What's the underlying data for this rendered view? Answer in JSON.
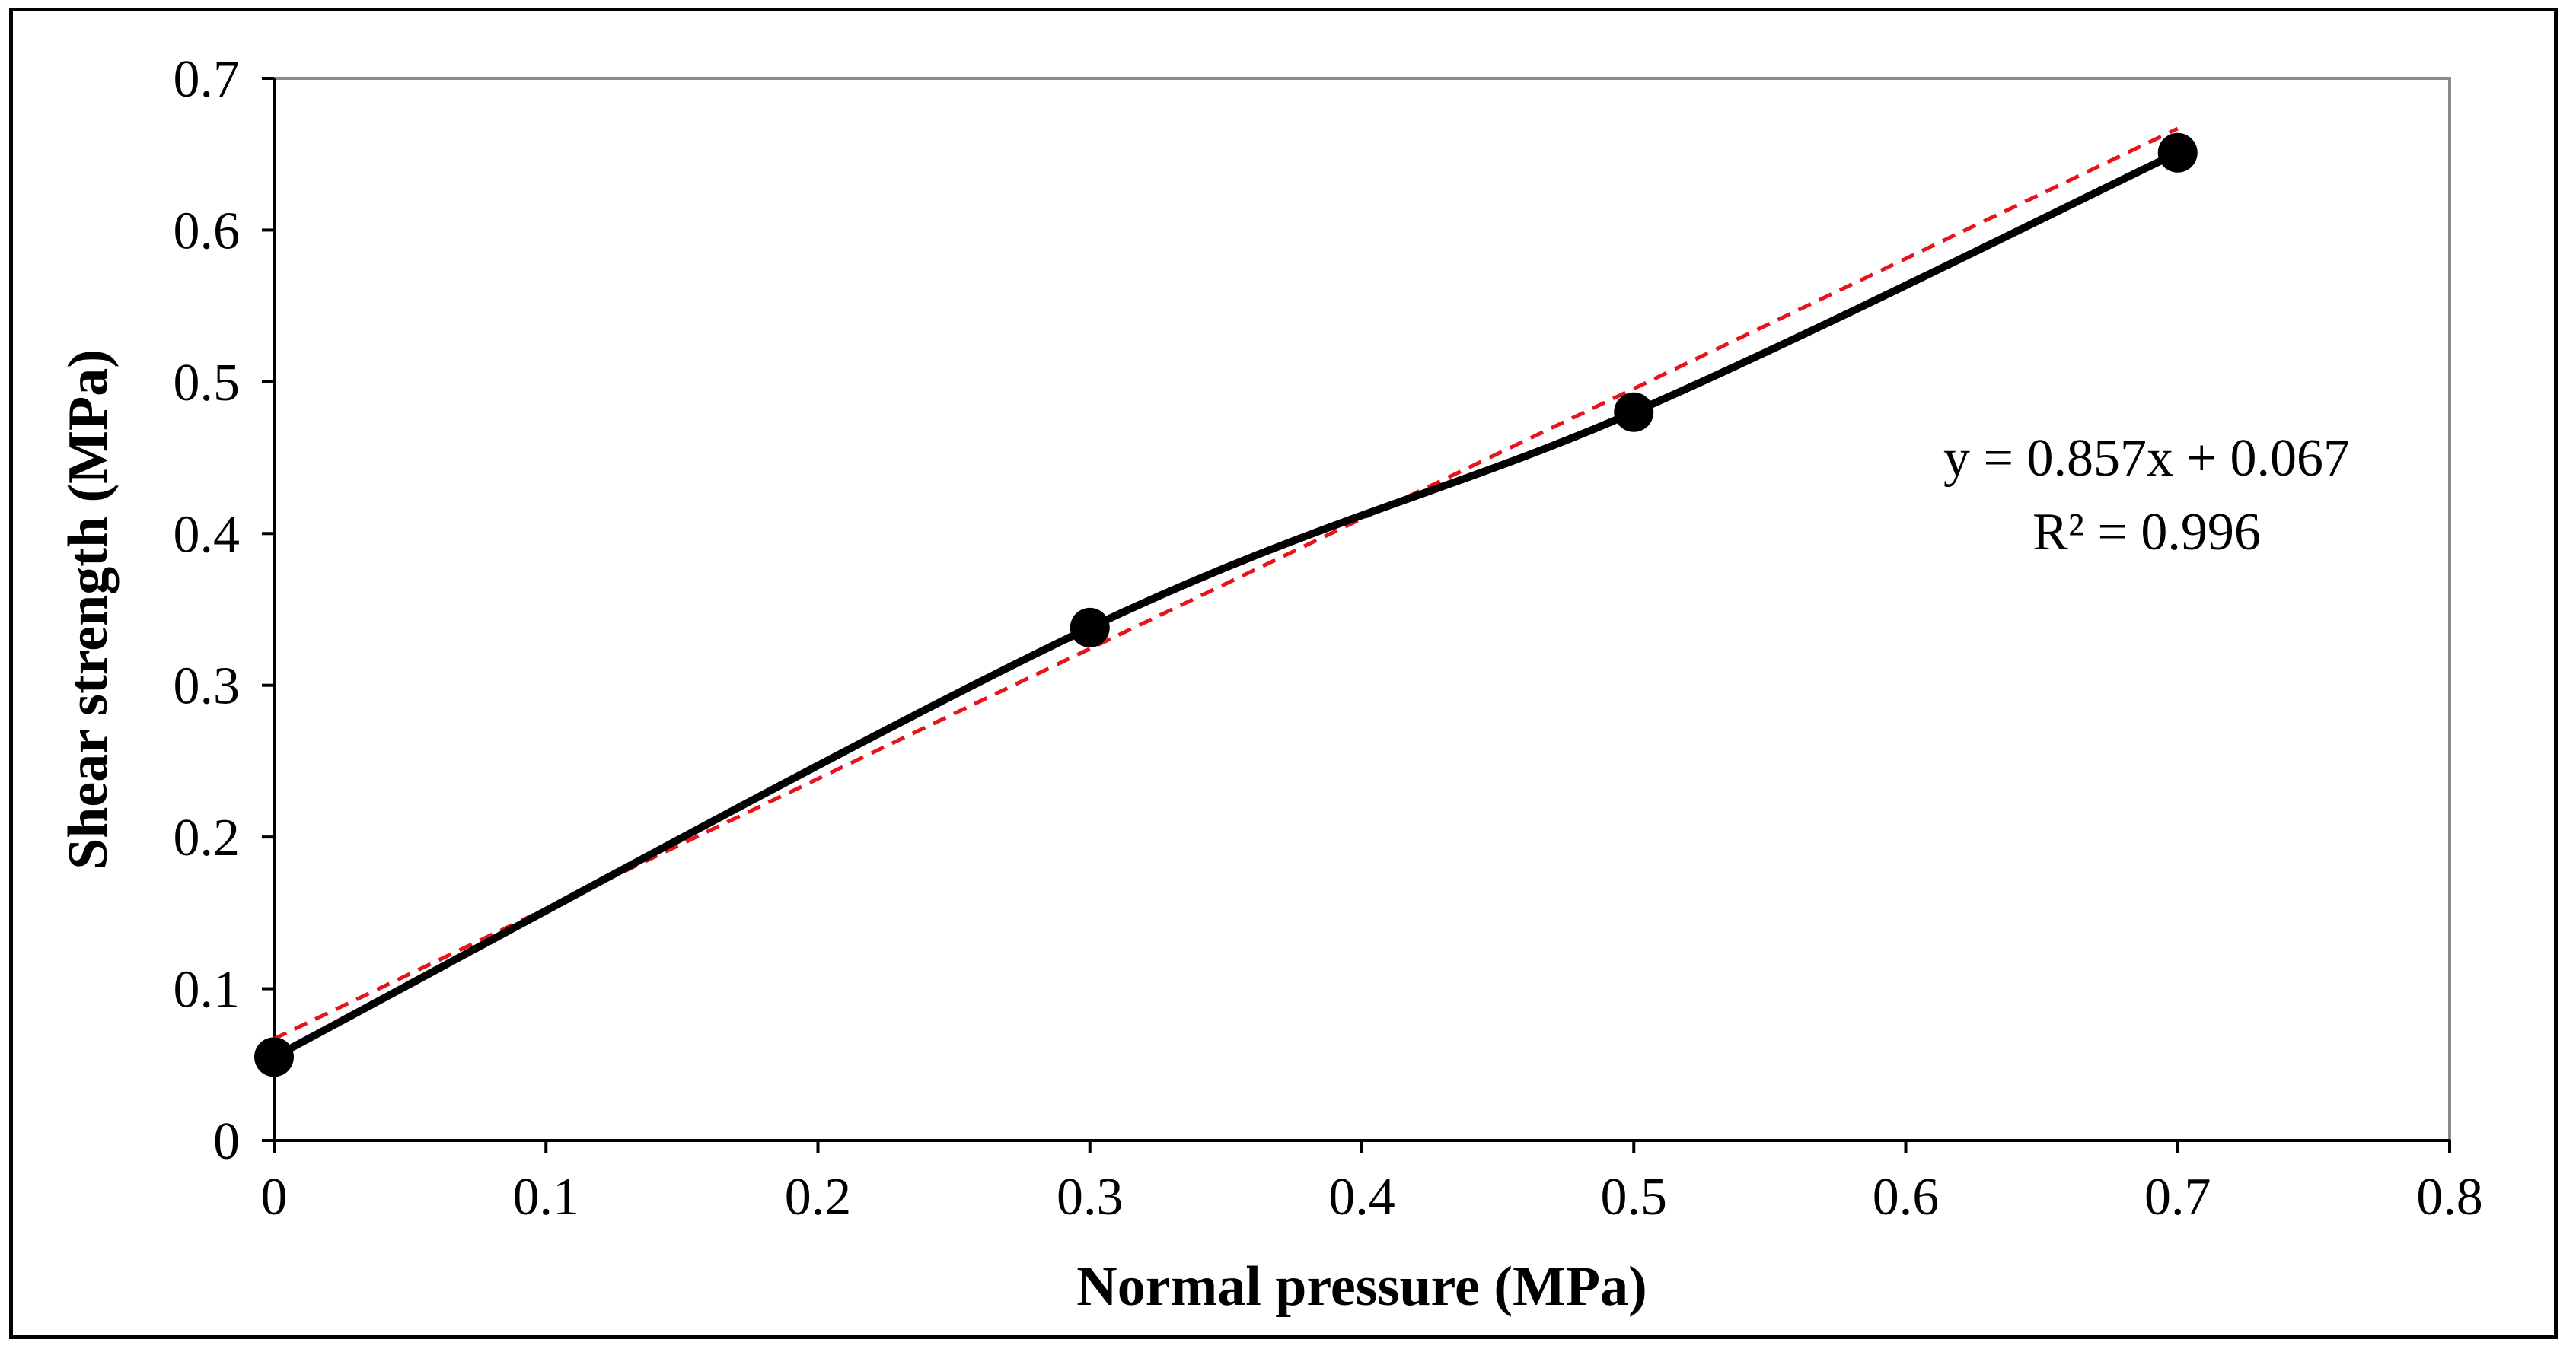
{
  "chart_data": {
    "type": "scatter",
    "title": "",
    "xlabel": "Normal pressure (MPa)",
    "ylabel": "Shear strength (MPa)",
    "xlim": [
      0,
      0.8
    ],
    "ylim": [
      0,
      0.7
    ],
    "x_ticks": [
      "0",
      "0.1",
      "0.2",
      "0.3",
      "0.4",
      "0.5",
      "0.6",
      "0.7",
      "0.8"
    ],
    "y_ticks": [
      "0",
      "0.1",
      "0.2",
      "0.3",
      "0.4",
      "0.5",
      "0.6",
      "0.7"
    ],
    "series": [
      {
        "name": "Shear strength",
        "x": [
          0,
          0.3,
          0.5,
          0.7
        ],
        "y": [
          0.055,
          0.338,
          0.48,
          0.651
        ],
        "line": "smooth",
        "color": "#000000"
      }
    ],
    "trendline": {
      "type": "linear",
      "slope": 0.857,
      "intercept": 0.067,
      "r2": 0.996,
      "x_range": [
        0,
        0.7
      ],
      "color": "#e8141b",
      "style": "dashed"
    },
    "annotations": {
      "equation": "y = 0.857x + 0.067",
      "r_squared": "R² = 0.996"
    },
    "grid": false,
    "legend": "none"
  }
}
